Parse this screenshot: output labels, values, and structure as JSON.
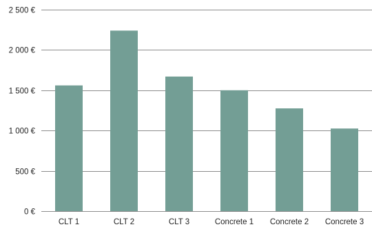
{
  "chart_data": {
    "type": "bar",
    "title": "",
    "xlabel": "",
    "ylabel": "",
    "categories": [
      "CLT 1",
      "CLT 2",
      "CLT 3",
      "Concrete 1",
      "Concrete 2",
      "Concrete 3"
    ],
    "values": [
      1560,
      2240,
      1670,
      1500,
      1275,
      1025
    ],
    "ylim": [
      0,
      2500
    ],
    "yticks": [
      0,
      500,
      1000,
      1500,
      2000,
      2500
    ],
    "ytick_labels": [
      "0 €",
      "500 €",
      "1 000 €",
      "1 500 €",
      "2 000 €",
      "2 500 €"
    ],
    "grid": true,
    "legend": "none",
    "colors": {
      "bar": "#739e95",
      "grid": "#8c8c8c",
      "text": "#222222"
    }
  }
}
